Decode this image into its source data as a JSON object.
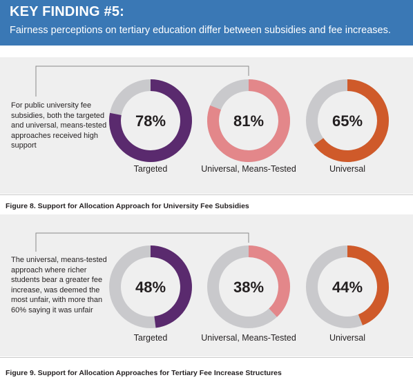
{
  "header": {
    "title": "KEY FINDING #5:",
    "subtitle": "Fairness perceptions on tertiary education differ between subsidies and fee increases."
  },
  "colors": {
    "header_bg": "#3a78b5",
    "targeted": "#5a2a6e",
    "universal_means_tested": "#e3878a",
    "universal": "#cf5a2a",
    "remainder": "#c9c9cc"
  },
  "chart_data": [
    {
      "type": "donut",
      "caption": "Figure 8. Support for Allocation Approach for University Fee Subsidies",
      "note": "For public university fee subsidies, both the targeted and universal, means-tested approaches received high support",
      "categories": [
        "Targeted",
        "Universal, Means-Tested",
        "Universal"
      ],
      "values": [
        78,
        81,
        65
      ],
      "labels": [
        "78%",
        "81%",
        "65%"
      ],
      "unit": "%"
    },
    {
      "type": "donut",
      "caption": "Figure 9. Support for Allocation Approaches for Tertiary Fee Increase Structures",
      "note": "The universal, means-tested approach where richer students bear a greater fee increase, was deemed the most unfair, with more than 60% saying it was unfair",
      "categories": [
        "Targeted",
        "Universal, Means-Tested",
        "Universal"
      ],
      "values": [
        48,
        38,
        44
      ],
      "labels": [
        "48%",
        "38%",
        "44%"
      ],
      "unit": "%"
    }
  ]
}
